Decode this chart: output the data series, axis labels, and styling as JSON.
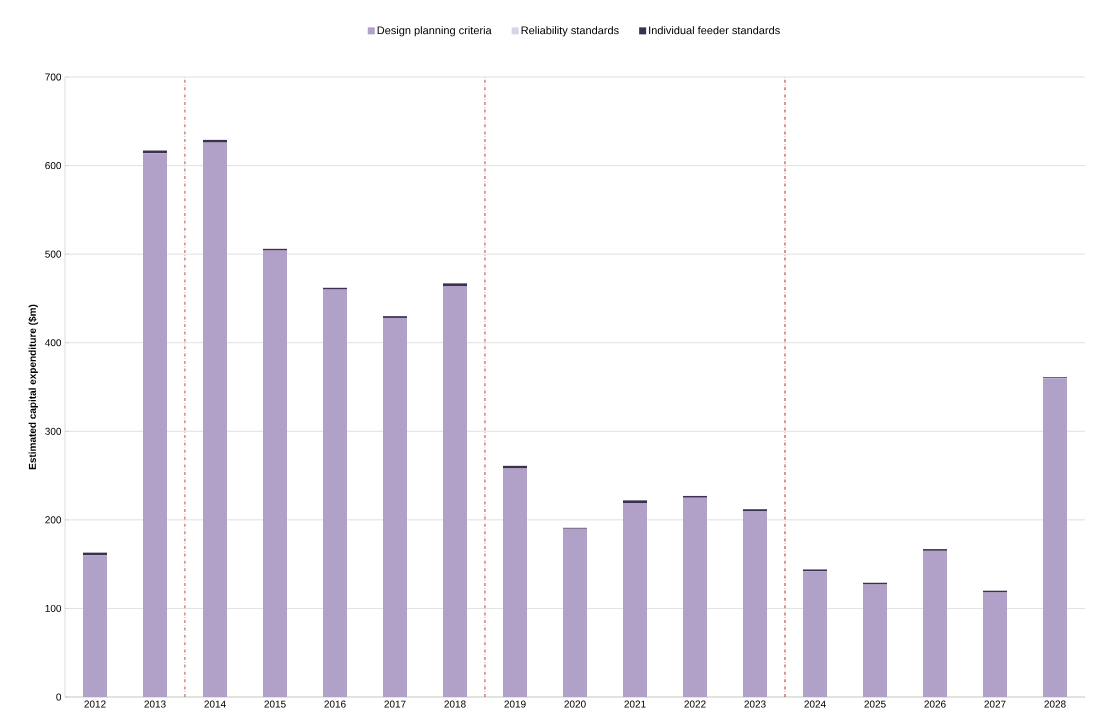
{
  "chart_data": {
    "type": "bar",
    "stacked": true,
    "ylabel": "Estimated capital expenditure ($m)",
    "x": [
      2012,
      2013,
      2014,
      2015,
      2016,
      2017,
      2018,
      2019,
      2020,
      2021,
      2022,
      2023,
      2024,
      2025,
      2026,
      2027,
      2028
    ],
    "xlim": [
      2011.5,
      2028.5
    ],
    "xticks": [
      2012,
      2013,
      2014,
      2015,
      2016,
      2017,
      2018,
      2019,
      2020,
      2021,
      2022,
      2023,
      2024,
      2025,
      2026,
      2027,
      2028
    ],
    "ylim": [
      0,
      700
    ],
    "yticks": [
      0,
      100,
      200,
      300,
      400,
      500,
      600,
      700
    ],
    "grid": "y",
    "legend": "top",
    "series": [
      {
        "name": "Design planning criteria",
        "color": "#b1a0c7",
        "values": [
          160,
          614,
          626,
          504,
          460,
          428,
          464,
          258,
          190,
          219,
          225,
          210,
          142,
          127,
          165,
          118,
          360
        ]
      },
      {
        "name": "Reliability standards",
        "color": "#d9d3e6",
        "values": [
          0,
          0,
          0,
          0,
          0,
          0,
          0,
          0,
          0,
          0,
          0,
          0,
          0,
          0,
          0,
          0,
          0
        ]
      },
      {
        "name": "Individual feeder standards",
        "color": "#3b3050",
        "values": [
          3,
          3,
          3,
          2,
          2,
          2,
          3,
          3,
          1,
          3,
          2,
          2,
          2,
          2,
          2,
          2,
          1
        ]
      }
    ],
    "ref_lines": [
      {
        "axis": "x",
        "value": 2013.5,
        "color": "#c0504d",
        "line_style": "dashdotted"
      },
      {
        "axis": "x",
        "value": 2018.5,
        "color": "#c0504d",
        "line_style": "dashdotted"
      },
      {
        "axis": "x",
        "value": 2023.5,
        "color": "#c0504d",
        "line_style": "dashdotted"
      }
    ]
  }
}
